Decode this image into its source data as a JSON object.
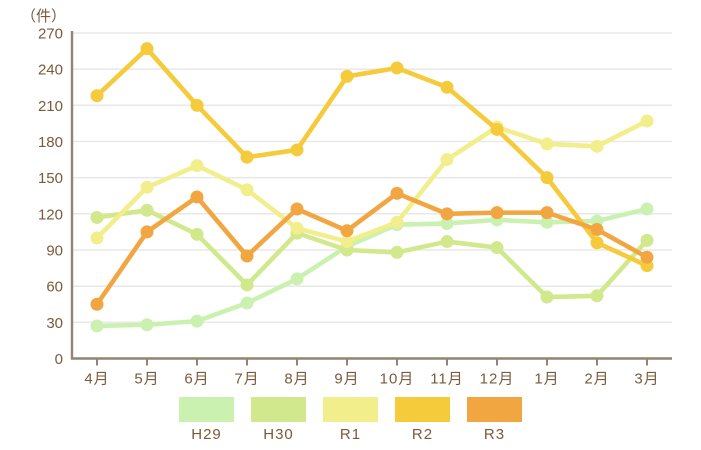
{
  "colors": {
    "background": "#ffffff",
    "grid": "#e9e9e9",
    "axis": "#918473",
    "text": "#7a5a3a"
  },
  "chart_data": {
    "type": "line",
    "title": "",
    "xlabel": "",
    "ylabel": "（件）",
    "ylim": [
      0,
      270
    ],
    "ytick_step": 30,
    "grid": true,
    "legend_position": "bottom",
    "categories": [
      "4月",
      "5月",
      "6月",
      "7月",
      "8月",
      "9月",
      "10月",
      "11月",
      "12月",
      "1月",
      "2月",
      "3月"
    ],
    "series": [
      {
        "name": "H29",
        "color": "#cbf1b1",
        "values": [
          27,
          28,
          31,
          46,
          66,
          93,
          111,
          112,
          115,
          113,
          114,
          124
        ]
      },
      {
        "name": "H30",
        "color": "#d2e88c",
        "values": [
          117,
          123,
          103,
          61,
          104,
          90,
          88,
          97,
          92,
          51,
          52,
          98
        ]
      },
      {
        "name": "R1",
        "color": "#f1ee8b",
        "values": [
          100,
          142,
          160,
          140,
          108,
          97,
          113,
          165,
          192,
          178,
          176,
          197
        ]
      },
      {
        "name": "R2",
        "color": "#f5ca3b",
        "values": [
          218,
          257,
          210,
          167,
          173,
          234,
          241,
          225,
          190,
          150,
          96,
          77
        ]
      },
      {
        "name": "R3",
        "color": "#f1a641",
        "values": [
          45,
          105,
          134,
          85,
          124,
          106,
          137,
          120,
          121,
          121,
          107,
          84
        ]
      }
    ]
  }
}
